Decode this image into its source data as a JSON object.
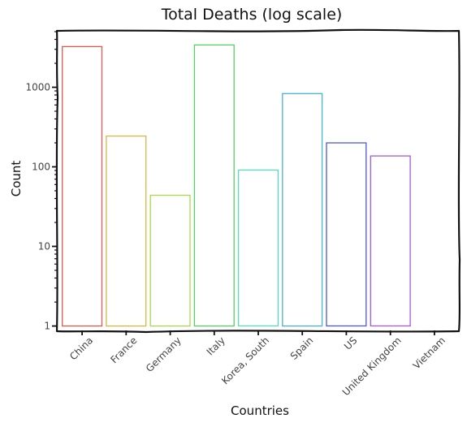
{
  "chart_data": {
    "type": "bar",
    "title": "Total Deaths (log scale)",
    "xlabel": "Countries",
    "ylabel": "Count",
    "yscale": "log",
    "ylim": [
      0.88,
      5000
    ],
    "yticks": [
      1,
      10,
      100,
      1000
    ],
    "ytick_labels": [
      "1",
      "10",
      "100",
      "1000"
    ],
    "grid": false,
    "categories": [
      "China",
      "France",
      "Germany",
      "Italy",
      "Korea, South",
      "Spain",
      "US",
      "United Kingdom",
      "Vietnam"
    ],
    "values": [
      3245,
      244,
      44,
      3405,
      91,
      833,
      200,
      137,
      0
    ],
    "colors": [
      "#e05a4e",
      "#d9b648",
      "#a9d84a",
      "#57d062",
      "#56dcb8",
      "#4ab0d8",
      "#4f57d8",
      "#a45ad6",
      "#d85cb6"
    ]
  }
}
